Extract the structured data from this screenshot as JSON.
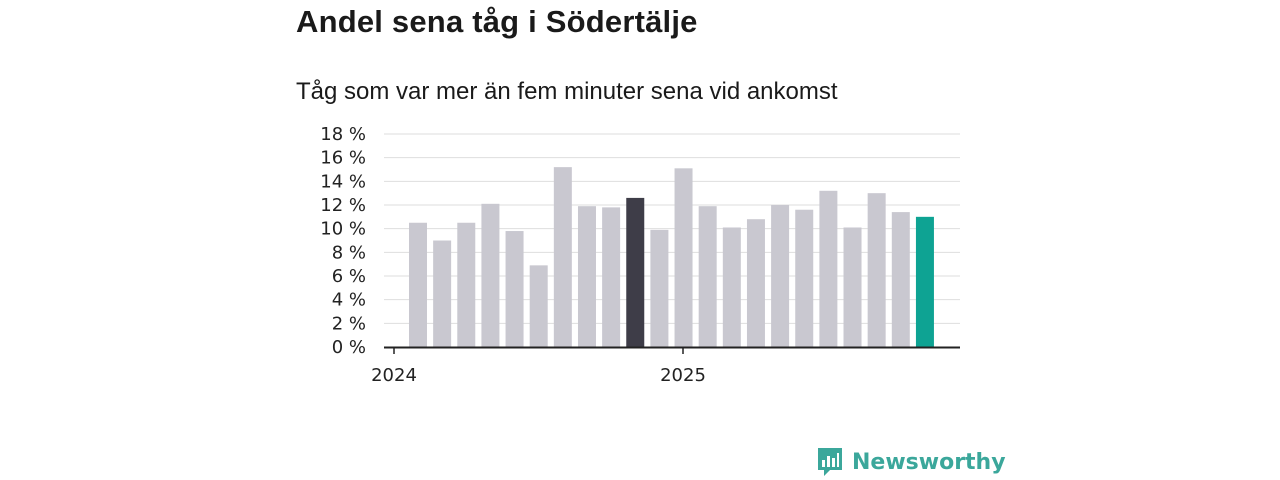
{
  "header": {
    "title": "Andel sena tåg i Södertälje",
    "subtitle": "Tåg som var mer än fem minuter sena vid ankomst"
  },
  "brand": {
    "name": "Newsworthy",
    "color": "#3ba79b"
  },
  "colors": {
    "default_bar": "#c9c8d0",
    "highlight_bar": "#3e3d48",
    "latest_bar": "#0ea393"
  },
  "chart_data": {
    "type": "bar",
    "y_axis_ticks": [
      "0 %",
      "2 %",
      "4 %",
      "6 %",
      "8 %",
      "10 %",
      "12 %",
      "14 %",
      "16 %",
      "18 %"
    ],
    "ylim": [
      0,
      18
    ],
    "x_axis_ticks": [
      {
        "label": "2024",
        "index": 0
      },
      {
        "label": "2025",
        "index": 12
      }
    ],
    "grid": true,
    "values": [
      10.5,
      9.0,
      10.5,
      12.1,
      9.8,
      6.9,
      15.2,
      11.9,
      11.8,
      12.6,
      9.9,
      15.1,
      11.9,
      10.1,
      10.8,
      12.0,
      11.6,
      13.2,
      10.1,
      13.0,
      11.4,
      11.0
    ],
    "highlight_index": 9,
    "latest_index": 21
  }
}
